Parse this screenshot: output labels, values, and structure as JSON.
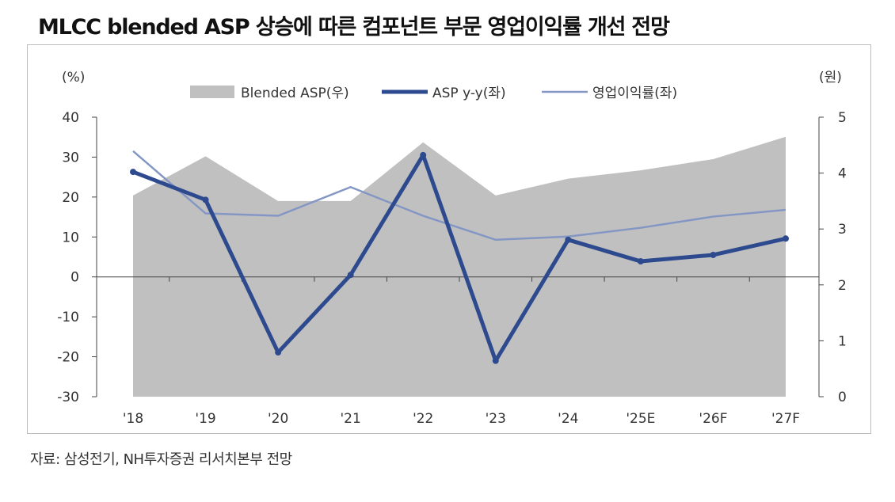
{
  "title": "MLCC blended ASP 상승에 따른 컴포넌트 부문 영업이익률 개선 전망",
  "source": "자료: 삼성전기, NH투자증권 리서치본부 전망",
  "chart_data": {
    "type": "line",
    "categories": [
      "'18",
      "'19",
      "'20",
      "'21",
      "'22",
      "'23",
      "'24",
      "'25E",
      "'26F",
      "'27F"
    ],
    "left_unit": "(%)",
    "right_unit": "(원)",
    "ylim_left": [
      -30,
      40
    ],
    "ylim_right": [
      0,
      5
    ],
    "yticks_left": [
      "40",
      "30",
      "20",
      "10",
      "0",
      "-10",
      "-20",
      "-30"
    ],
    "yticks_right": [
      "5",
      "4",
      "3",
      "2",
      "1",
      "0"
    ],
    "series": [
      {
        "name": "Blended ASP(우)",
        "type": "area",
        "axis": "right",
        "color": "#c0c0c0",
        "values": [
          3.6,
          4.3,
          3.5,
          3.5,
          4.55,
          3.6,
          3.9,
          4.05,
          4.25,
          4.65
        ]
      },
      {
        "name": "ASP y-y(좌)",
        "type": "line",
        "axis": "left",
        "color": "#2e4a8f",
        "values": [
          26.3,
          19.3,
          -18.9,
          0.5,
          30.5,
          -21.0,
          9.3,
          3.9,
          5.5,
          9.6
        ]
      },
      {
        "name": "영업이익률(좌)",
        "type": "line",
        "axis": "left",
        "color": "#8497c4",
        "values": [
          31.5,
          15.9,
          15.3,
          22.5,
          15.3,
          9.3,
          10.1,
          12.3,
          15.1,
          16.8
        ]
      }
    ],
    "legend_position": "top-center",
    "grid": false
  }
}
